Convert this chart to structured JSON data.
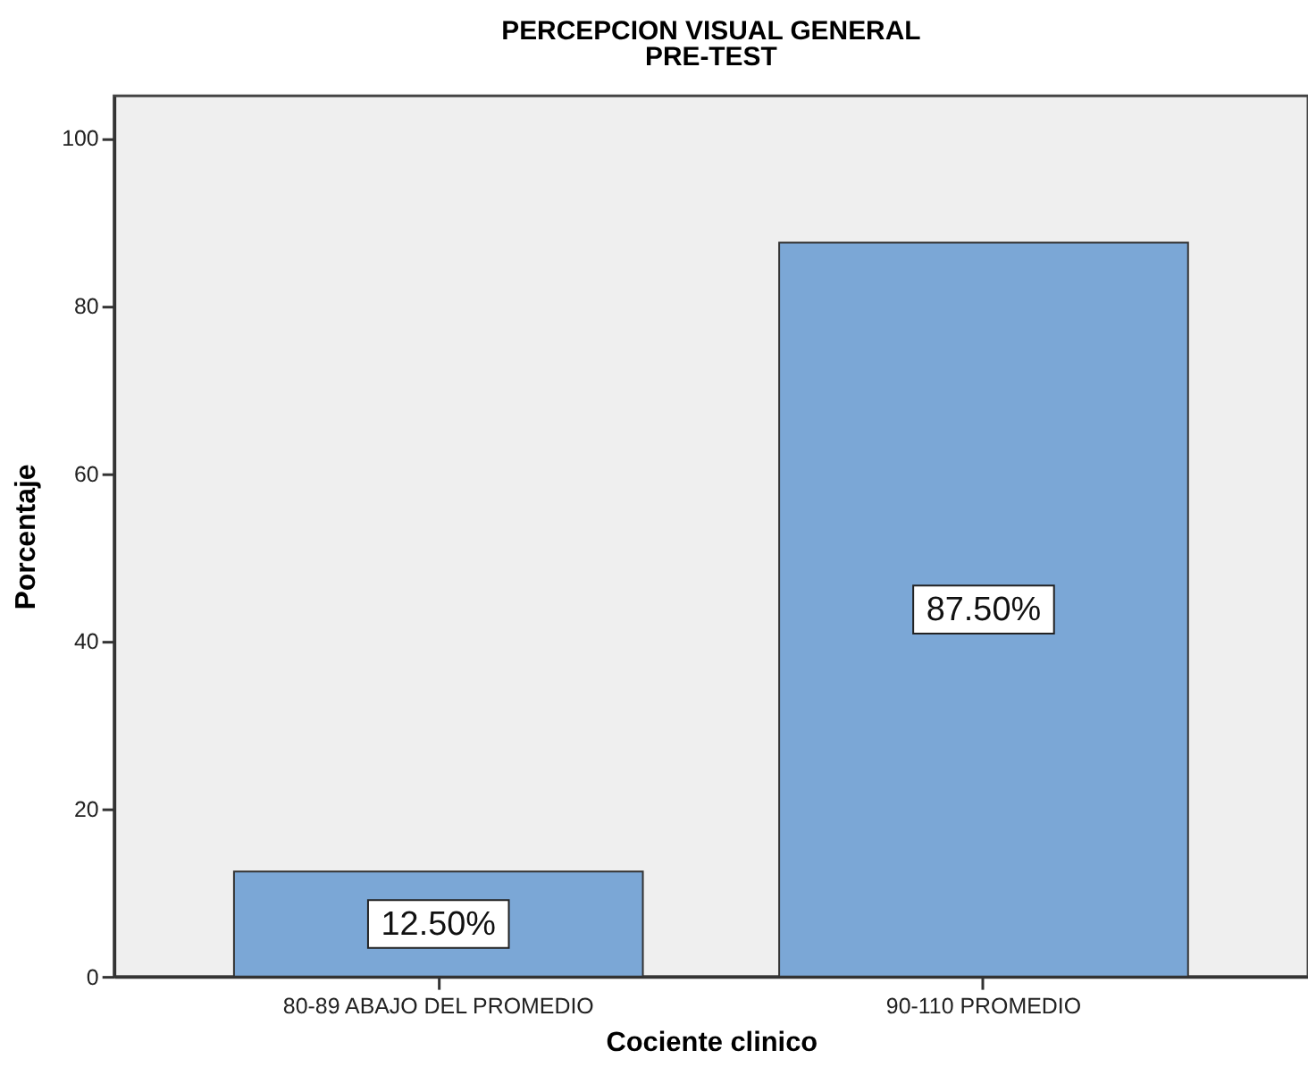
{
  "chart_data": {
    "type": "bar",
    "title": "PERCEPCION VISUAL GENERAL",
    "subtitle": "PRE-TEST",
    "xlabel": "Cociente clinico",
    "ylabel": "Porcentaje",
    "categories": [
      "80-89 ABAJO DEL PROMEDIO",
      "90-110 PROMEDIO"
    ],
    "values": [
      12.5,
      87.5
    ],
    "color": "#7ba7d6",
    "value_labels": [
      "12.50%",
      "87.50%"
    ],
    "ylim": [
      0,
      105
    ],
    "yticks": [
      0,
      20,
      40,
      60,
      80,
      100
    ]
  }
}
